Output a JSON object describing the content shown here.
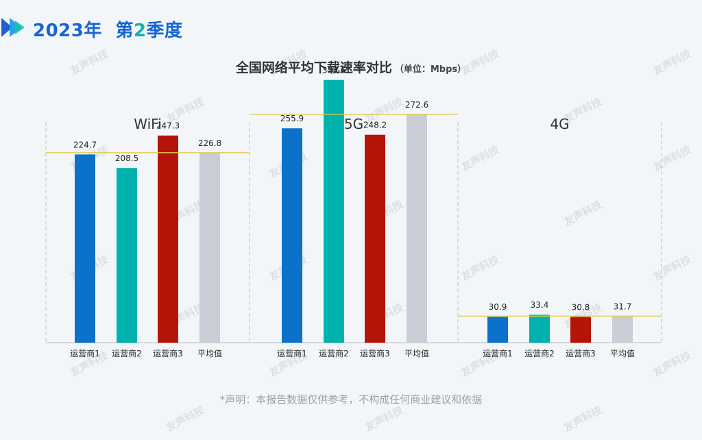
{
  "header": {
    "year_label": "2023年",
    "quarter_prefix": "第",
    "quarter_num": "2",
    "quarter_suffix": "季度"
  },
  "title": {
    "main": "全国网络平均下载速率对比",
    "unit": "（单位：Mbps）"
  },
  "watermark": {
    "text": "友声科技"
  },
  "disclaimer": "*声明：本报告数据仅供参考，不构成任何商业建议和依据",
  "colors": {
    "operator1": "#0a72c9",
    "operator2": "#00b2ae",
    "operator3": "#b51408",
    "average": "#c8cdd6",
    "avg_line": "#e6c84a",
    "divider": "#b8bcc2",
    "brand_blue": "#1565d8",
    "brand_teal": "#0bb6b0"
  },
  "chart_data": {
    "type": "bar",
    "ylim": [
      0,
      360
    ],
    "categories": [
      "运营商1",
      "运营商2",
      "运营商3",
      "平均值"
    ],
    "panels": [
      {
        "name": "WiFi",
        "values": [
          224.7,
          208.5,
          247.3,
          226.8
        ],
        "average": 226.8
      },
      {
        "name": "5G",
        "values": [
          255.9,
          313.6,
          248.2,
          272.6
        ],
        "average": 272.6
      },
      {
        "name": "4G",
        "values": [
          30.9,
          33.4,
          30.8,
          31.7
        ],
        "average": 31.7
      }
    ]
  }
}
